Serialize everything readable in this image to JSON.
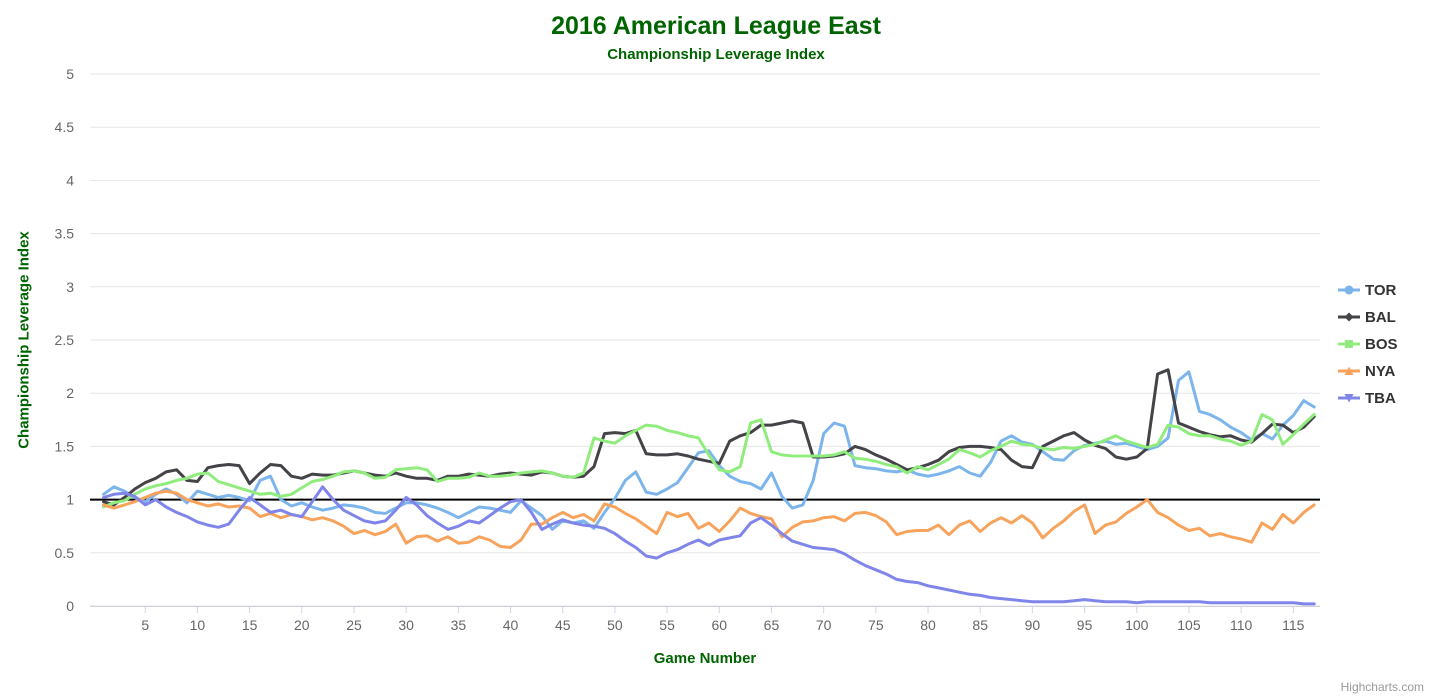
{
  "header": {
    "title": "2016 American League East",
    "subtitle": "Championship Leverage Index"
  },
  "credit": "Highcharts.com",
  "colors": {
    "title_text": "#006400",
    "grid": "#e6e6e6",
    "axis_line": "#d0d0d8",
    "tick": "#ccd6eb",
    "axis_label": "#666666",
    "plotline": "#000000",
    "legend_text": "#333333",
    "credit_text": "#999999"
  },
  "chart_data": {
    "type": "line",
    "title": "2016 American League East",
    "subtitle": "Championship Leverage Index",
    "xlabel": "Game Number",
    "ylabel": "Championship Leverage Index",
    "xlim": [
      1,
      117
    ],
    "ylim": [
      0,
      5
    ],
    "x_ticks": [
      5,
      10,
      15,
      20,
      25,
      30,
      35,
      40,
      45,
      50,
      55,
      60,
      65,
      70,
      75,
      80,
      85,
      90,
      95,
      100,
      105,
      110,
      115
    ],
    "y_ticks": [
      0,
      0.5,
      1,
      1.5,
      2,
      2.5,
      3,
      3.5,
      4,
      4.5,
      5
    ],
    "grid": true,
    "legend_position": "right",
    "plotline_y": 1,
    "x_start": 1,
    "series": [
      {
        "name": "TOR",
        "color": "#7cb5ec",
        "marker": "circle",
        "values": [
          1.05,
          1.12,
          1.08,
          1.02,
          0.98,
          1.05,
          1.1,
          1.05,
          0.97,
          1.08,
          1.05,
          1.02,
          1.04,
          1.02,
          0.99,
          1.18,
          1.22,
          1.0,
          0.94,
          0.97,
          0.93,
          0.9,
          0.92,
          0.95,
          0.94,
          0.92,
          0.88,
          0.87,
          0.92,
          0.97,
          0.97,
          0.95,
          0.92,
          0.88,
          0.83,
          0.88,
          0.93,
          0.92,
          0.9,
          0.88,
          0.99,
          0.92,
          0.85,
          0.72,
          0.8,
          0.78,
          0.8,
          0.73,
          0.88,
          1.01,
          1.18,
          1.26,
          1.07,
          1.05,
          1.1,
          1.16,
          1.3,
          1.44,
          1.46,
          1.32,
          1.22,
          1.17,
          1.15,
          1.1,
          1.25,
          1.03,
          0.92,
          0.95,
          1.18,
          1.62,
          1.72,
          1.69,
          1.32,
          1.3,
          1.29,
          1.27,
          1.26,
          1.28,
          1.24,
          1.22,
          1.24,
          1.27,
          1.31,
          1.25,
          1.22,
          1.35,
          1.55,
          1.6,
          1.54,
          1.52,
          1.45,
          1.38,
          1.37,
          1.46,
          1.51,
          1.53,
          1.55,
          1.52,
          1.53,
          1.5,
          1.47,
          1.5,
          1.58,
          2.12,
          2.2,
          1.83,
          1.8,
          1.75,
          1.68,
          1.63,
          1.56,
          1.62,
          1.57,
          1.7,
          1.79,
          1.93,
          1.87
        ]
      },
      {
        "name": "BAL",
        "color": "#434348",
        "marker": "diamond",
        "values": [
          0.98,
          0.95,
          1.02,
          1.1,
          1.16,
          1.2,
          1.26,
          1.28,
          1.18,
          1.17,
          1.3,
          1.32,
          1.33,
          1.32,
          1.15,
          1.25,
          1.33,
          1.32,
          1.22,
          1.2,
          1.24,
          1.23,
          1.23,
          1.25,
          1.27,
          1.25,
          1.23,
          1.22,
          1.25,
          1.22,
          1.2,
          1.2,
          1.18,
          1.22,
          1.22,
          1.24,
          1.23,
          1.22,
          1.24,
          1.25,
          1.24,
          1.23,
          1.26,
          1.25,
          1.22,
          1.21,
          1.22,
          1.31,
          1.62,
          1.63,
          1.62,
          1.65,
          1.43,
          1.42,
          1.42,
          1.43,
          1.41,
          1.38,
          1.36,
          1.34,
          1.55,
          1.6,
          1.63,
          1.7,
          1.7,
          1.72,
          1.74,
          1.72,
          1.4,
          1.4,
          1.41,
          1.43,
          1.5,
          1.47,
          1.42,
          1.38,
          1.33,
          1.28,
          1.3,
          1.33,
          1.37,
          1.45,
          1.49,
          1.5,
          1.5,
          1.49,
          1.47,
          1.37,
          1.31,
          1.3,
          1.5,
          1.55,
          1.6,
          1.63,
          1.56,
          1.51,
          1.48,
          1.4,
          1.38,
          1.4,
          1.48,
          2.18,
          2.22,
          1.72,
          1.68,
          1.64,
          1.61,
          1.59,
          1.6,
          1.56,
          1.54,
          1.62,
          1.71,
          1.7,
          1.63,
          1.68,
          1.78
        ]
      },
      {
        "name": "BOS",
        "color": "#90ed7d",
        "marker": "square",
        "values": [
          0.93,
          0.97,
          0.99,
          1.05,
          1.1,
          1.13,
          1.15,
          1.18,
          1.2,
          1.24,
          1.25,
          1.17,
          1.14,
          1.11,
          1.08,
          1.05,
          1.06,
          1.03,
          1.05,
          1.11,
          1.17,
          1.19,
          1.22,
          1.26,
          1.27,
          1.25,
          1.2,
          1.21,
          1.28,
          1.29,
          1.3,
          1.28,
          1.17,
          1.2,
          1.2,
          1.21,
          1.25,
          1.22,
          1.22,
          1.23,
          1.25,
          1.26,
          1.27,
          1.25,
          1.22,
          1.21,
          1.25,
          1.58,
          1.55,
          1.53,
          1.6,
          1.65,
          1.7,
          1.69,
          1.65,
          1.63,
          1.6,
          1.58,
          1.42,
          1.28,
          1.26,
          1.31,
          1.72,
          1.75,
          1.45,
          1.42,
          1.41,
          1.41,
          1.41,
          1.41,
          1.42,
          1.45,
          1.39,
          1.38,
          1.36,
          1.33,
          1.31,
          1.25,
          1.31,
          1.28,
          1.33,
          1.38,
          1.47,
          1.44,
          1.4,
          1.46,
          1.5,
          1.55,
          1.52,
          1.51,
          1.48,
          1.47,
          1.49,
          1.48,
          1.5,
          1.52,
          1.56,
          1.6,
          1.55,
          1.52,
          1.49,
          1.52,
          1.7,
          1.68,
          1.62,
          1.6,
          1.6,
          1.57,
          1.55,
          1.51,
          1.55,
          1.8,
          1.75,
          1.52,
          1.61,
          1.71,
          1.8
        ]
      },
      {
        "name": "NYA",
        "color": "#f7a35c",
        "marker": "triangle",
        "values": [
          0.95,
          0.92,
          0.95,
          0.98,
          1.02,
          1.06,
          1.08,
          1.06,
          1.0,
          0.97,
          0.94,
          0.96,
          0.93,
          0.94,
          0.92,
          0.84,
          0.87,
          0.83,
          0.86,
          0.84,
          0.81,
          0.83,
          0.8,
          0.75,
          0.68,
          0.71,
          0.67,
          0.7,
          0.77,
          0.59,
          0.65,
          0.66,
          0.61,
          0.65,
          0.59,
          0.6,
          0.65,
          0.62,
          0.56,
          0.55,
          0.62,
          0.77,
          0.77,
          0.83,
          0.88,
          0.83,
          0.86,
          0.8,
          0.96,
          0.93,
          0.87,
          0.82,
          0.75,
          0.68,
          0.88,
          0.84,
          0.87,
          0.73,
          0.78,
          0.7,
          0.8,
          0.92,
          0.87,
          0.84,
          0.82,
          0.65,
          0.74,
          0.79,
          0.8,
          0.83,
          0.84,
          0.8,
          0.87,
          0.88,
          0.85,
          0.79,
          0.67,
          0.7,
          0.71,
          0.71,
          0.76,
          0.67,
          0.76,
          0.8,
          0.7,
          0.78,
          0.83,
          0.78,
          0.85,
          0.78,
          0.64,
          0.73,
          0.8,
          0.89,
          0.95,
          0.68,
          0.76,
          0.79,
          0.87,
          0.93,
          1.0,
          0.88,
          0.83,
          0.76,
          0.71,
          0.73,
          0.66,
          0.68,
          0.65,
          0.63,
          0.6,
          0.78,
          0.72,
          0.86,
          0.78,
          0.88,
          0.95
        ]
      },
      {
        "name": "TBA",
        "color": "#8085e9",
        "marker": "triangle-down",
        "values": [
          1.02,
          1.05,
          1.06,
          1.03,
          0.95,
          1.0,
          0.93,
          0.88,
          0.84,
          0.79,
          0.76,
          0.74,
          0.77,
          0.9,
          1.02,
          0.95,
          0.88,
          0.9,
          0.86,
          0.84,
          0.98,
          1.12,
          1.0,
          0.9,
          0.85,
          0.8,
          0.78,
          0.8,
          0.9,
          1.02,
          0.95,
          0.85,
          0.78,
          0.72,
          0.75,
          0.8,
          0.78,
          0.85,
          0.92,
          0.98,
          1.0,
          0.88,
          0.72,
          0.77,
          0.81,
          0.78,
          0.76,
          0.75,
          0.73,
          0.68,
          0.61,
          0.55,
          0.47,
          0.45,
          0.5,
          0.53,
          0.58,
          0.62,
          0.57,
          0.62,
          0.64,
          0.66,
          0.78,
          0.83,
          0.76,
          0.68,
          0.61,
          0.58,
          0.55,
          0.54,
          0.53,
          0.49,
          0.43,
          0.38,
          0.34,
          0.3,
          0.25,
          0.23,
          0.22,
          0.19,
          0.17,
          0.15,
          0.13,
          0.11,
          0.1,
          0.08,
          0.07,
          0.06,
          0.05,
          0.04,
          0.04,
          0.04,
          0.04,
          0.05,
          0.06,
          0.05,
          0.04,
          0.04,
          0.04,
          0.03,
          0.04,
          0.04,
          0.04,
          0.04,
          0.04,
          0.04,
          0.03,
          0.03,
          0.03,
          0.03,
          0.03,
          0.03,
          0.03,
          0.03,
          0.03,
          0.02,
          0.02
        ]
      }
    ]
  }
}
